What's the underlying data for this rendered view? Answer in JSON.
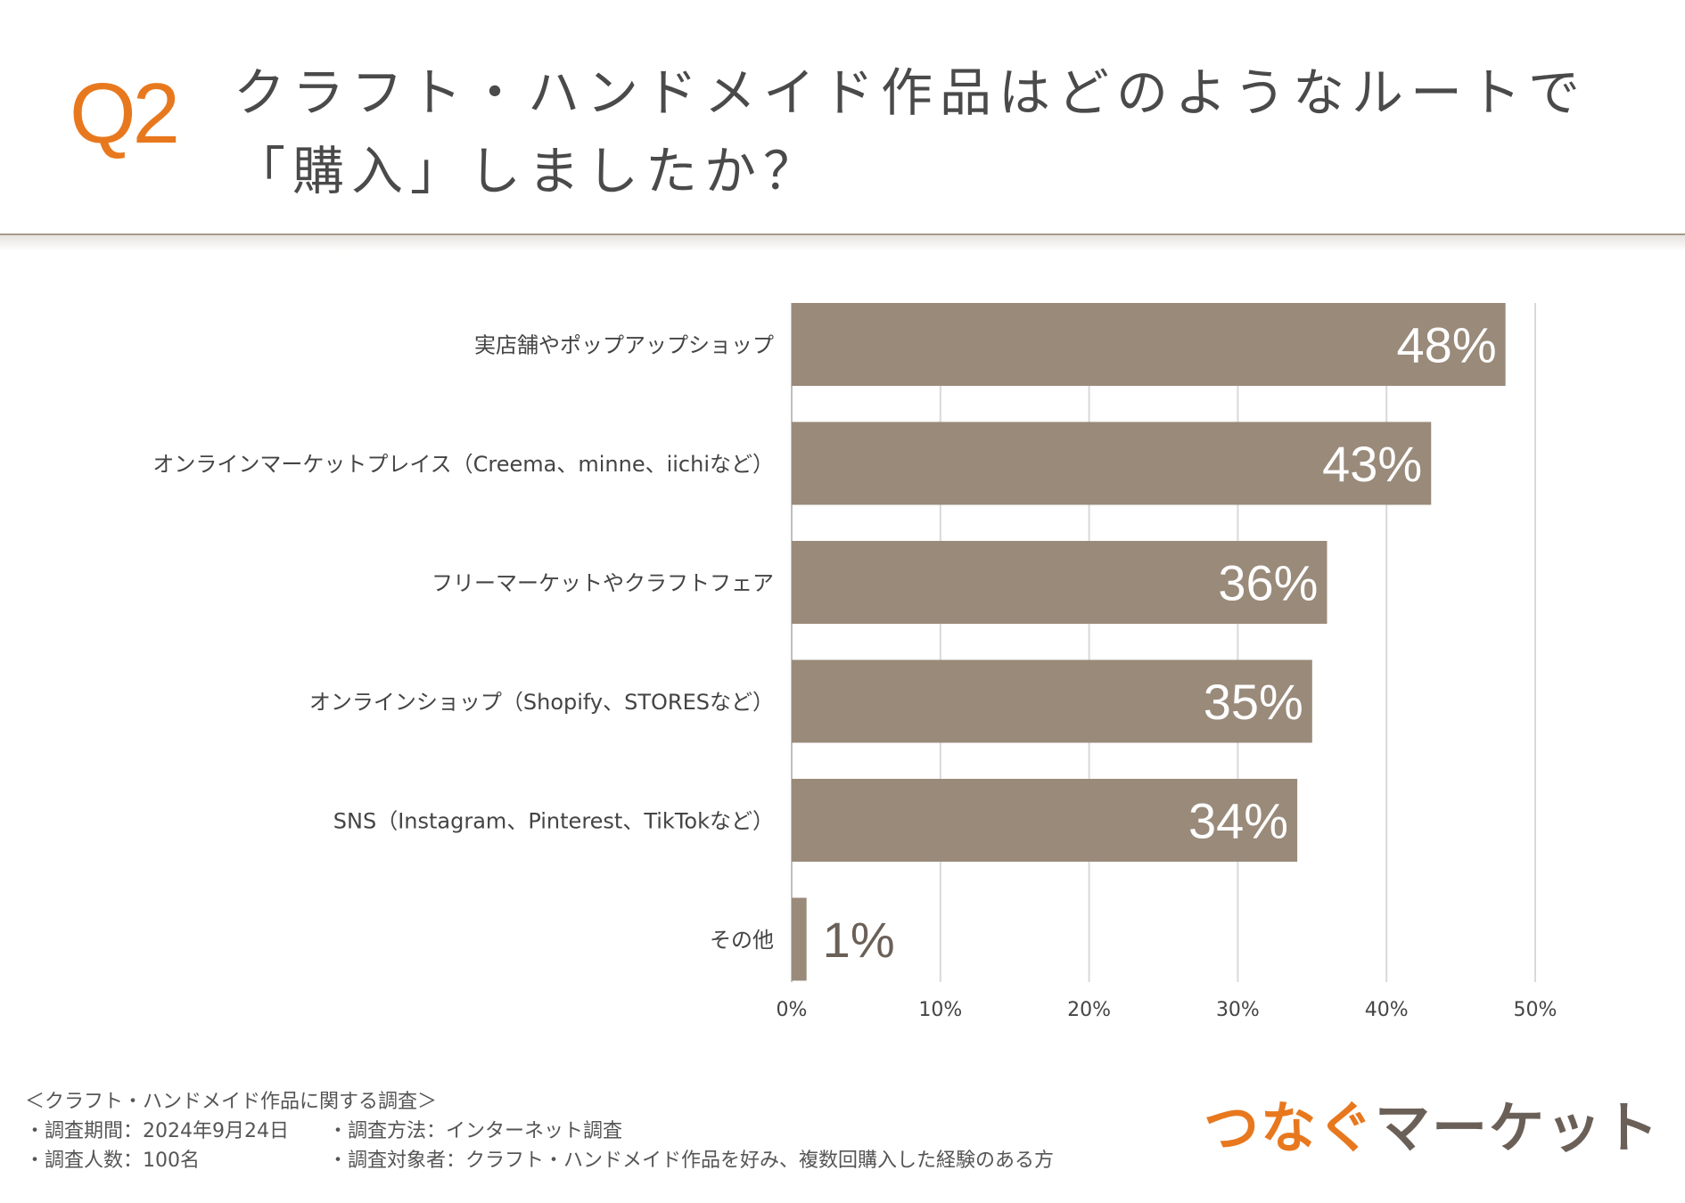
{
  "question": {
    "number": "Q2",
    "title_line1": "クラフト・ハンドメイド作品はどのようなルートで",
    "title_line2": "「購入」しましたか？"
  },
  "chart_data": {
    "type": "bar",
    "orientation": "horizontal",
    "categories": [
      "実店舗やポップアップショップ",
      "オンラインマーケットプレイス（Creema、minne、iichiなど）",
      "フリーマーケットやクラフトフェア",
      "オンラインショップ（Shopify、STORESなど）",
      "SNS（Instagram、Pinterest、TikTokなど）",
      "その他"
    ],
    "values": [
      48,
      43,
      36,
      35,
      34,
      1
    ],
    "value_labels": [
      "48%",
      "43%",
      "36%",
      "35%",
      "34%",
      "1%"
    ],
    "xlim": [
      0,
      50
    ],
    "xticks": [
      0,
      10,
      20,
      30,
      40,
      50
    ],
    "xtick_labels": [
      "0%",
      "10%",
      "20%",
      "30%",
      "40%",
      "50%"
    ],
    "grid": true,
    "bar_color": "#998a7a"
  },
  "footer": {
    "survey_name": "＜クラフト・ハンドメイド作品に関する調査＞",
    "period": "・調査期間：2024年9月24日",
    "method": "・調査方法：インターネット調査",
    "respondents": "・調査人数：100名",
    "target": "・調査対象者：クラフト・ハンドメイド作品を好み、複数回購入した経験のある方"
  },
  "brand": {
    "part1": "つなぐ",
    "part2": "マーケット"
  },
  "colors": {
    "accent": "#e8781e",
    "bar": "#998a7a",
    "text": "#4a4a4a"
  }
}
